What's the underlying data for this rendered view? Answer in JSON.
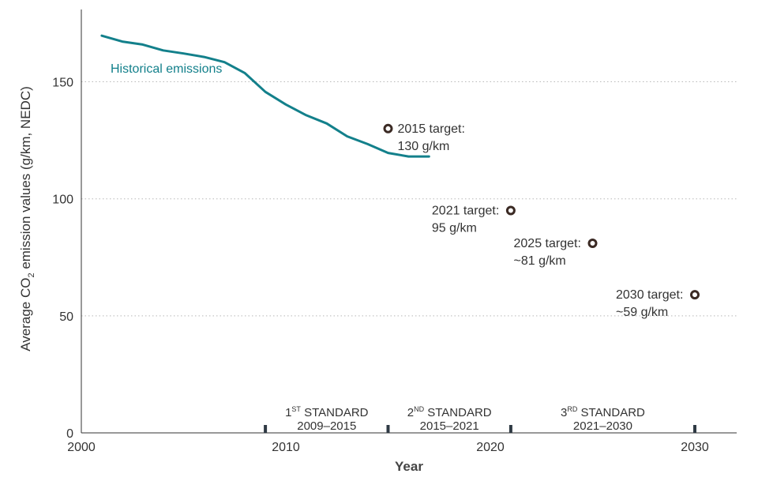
{
  "chart_data": {
    "type": "line",
    "xlabel": "Year",
    "ylabel_parts": [
      "Average CO",
      "2",
      " emission values (g/km, NEDC)"
    ],
    "xlim": [
      2000,
      2031
    ],
    "ylim": [
      0,
      180
    ],
    "x_ticks": [
      2000,
      2010,
      2020,
      2030
    ],
    "y_ticks": [
      0,
      50,
      100,
      150
    ],
    "grid": "horizontal dotted",
    "series": [
      {
        "name": "Historical emissions",
        "color": "#13808b",
        "x": [
          2001,
          2002,
          2003,
          2004,
          2005,
          2006,
          2007,
          2008,
          2009,
          2010,
          2011,
          2012,
          2013,
          2014,
          2015,
          2016,
          2017
        ],
        "y": [
          169.7,
          167.2,
          165.9,
          163.4,
          162.1,
          160.6,
          158.4,
          153.7,
          145.7,
          140.3,
          135.7,
          132.2,
          126.7,
          123.4,
          119.6,
          118.1,
          118.1
        ]
      }
    ],
    "targets": [
      {
        "x": 2015,
        "y": 130,
        "line1": "2015 target:",
        "line2": "130 g/km",
        "label_side": "right"
      },
      {
        "x": 2021,
        "y": 95,
        "line1": "2021 target:",
        "line2": "95 g/km",
        "label_side": "left"
      },
      {
        "x": 2025,
        "y": 81,
        "line1": "2025 target:",
        "line2": "~81 g/km",
        "label_side": "left"
      },
      {
        "x": 2030,
        "y": 59,
        "line1": "2030 target:",
        "line2": "~59 g/km",
        "label_side": "left"
      }
    ],
    "target_marker_color": "#3b2a24",
    "standards": [
      {
        "ordinal": "1",
        "sup": "ST",
        "word": " STANDARD",
        "range": "2009–2015",
        "start": 2009,
        "end": 2015
      },
      {
        "ordinal": "2",
        "sup": "ND",
        "word": " STANDARD",
        "range": "2015–2021",
        "start": 2015,
        "end": 2021
      },
      {
        "ordinal": "3",
        "sup": "RD",
        "word": " STANDARD",
        "range": "2021–2030",
        "start": 2021,
        "end": 2030
      }
    ],
    "standard_markers": [
      2009,
      2015,
      2021,
      2030
    ]
  }
}
